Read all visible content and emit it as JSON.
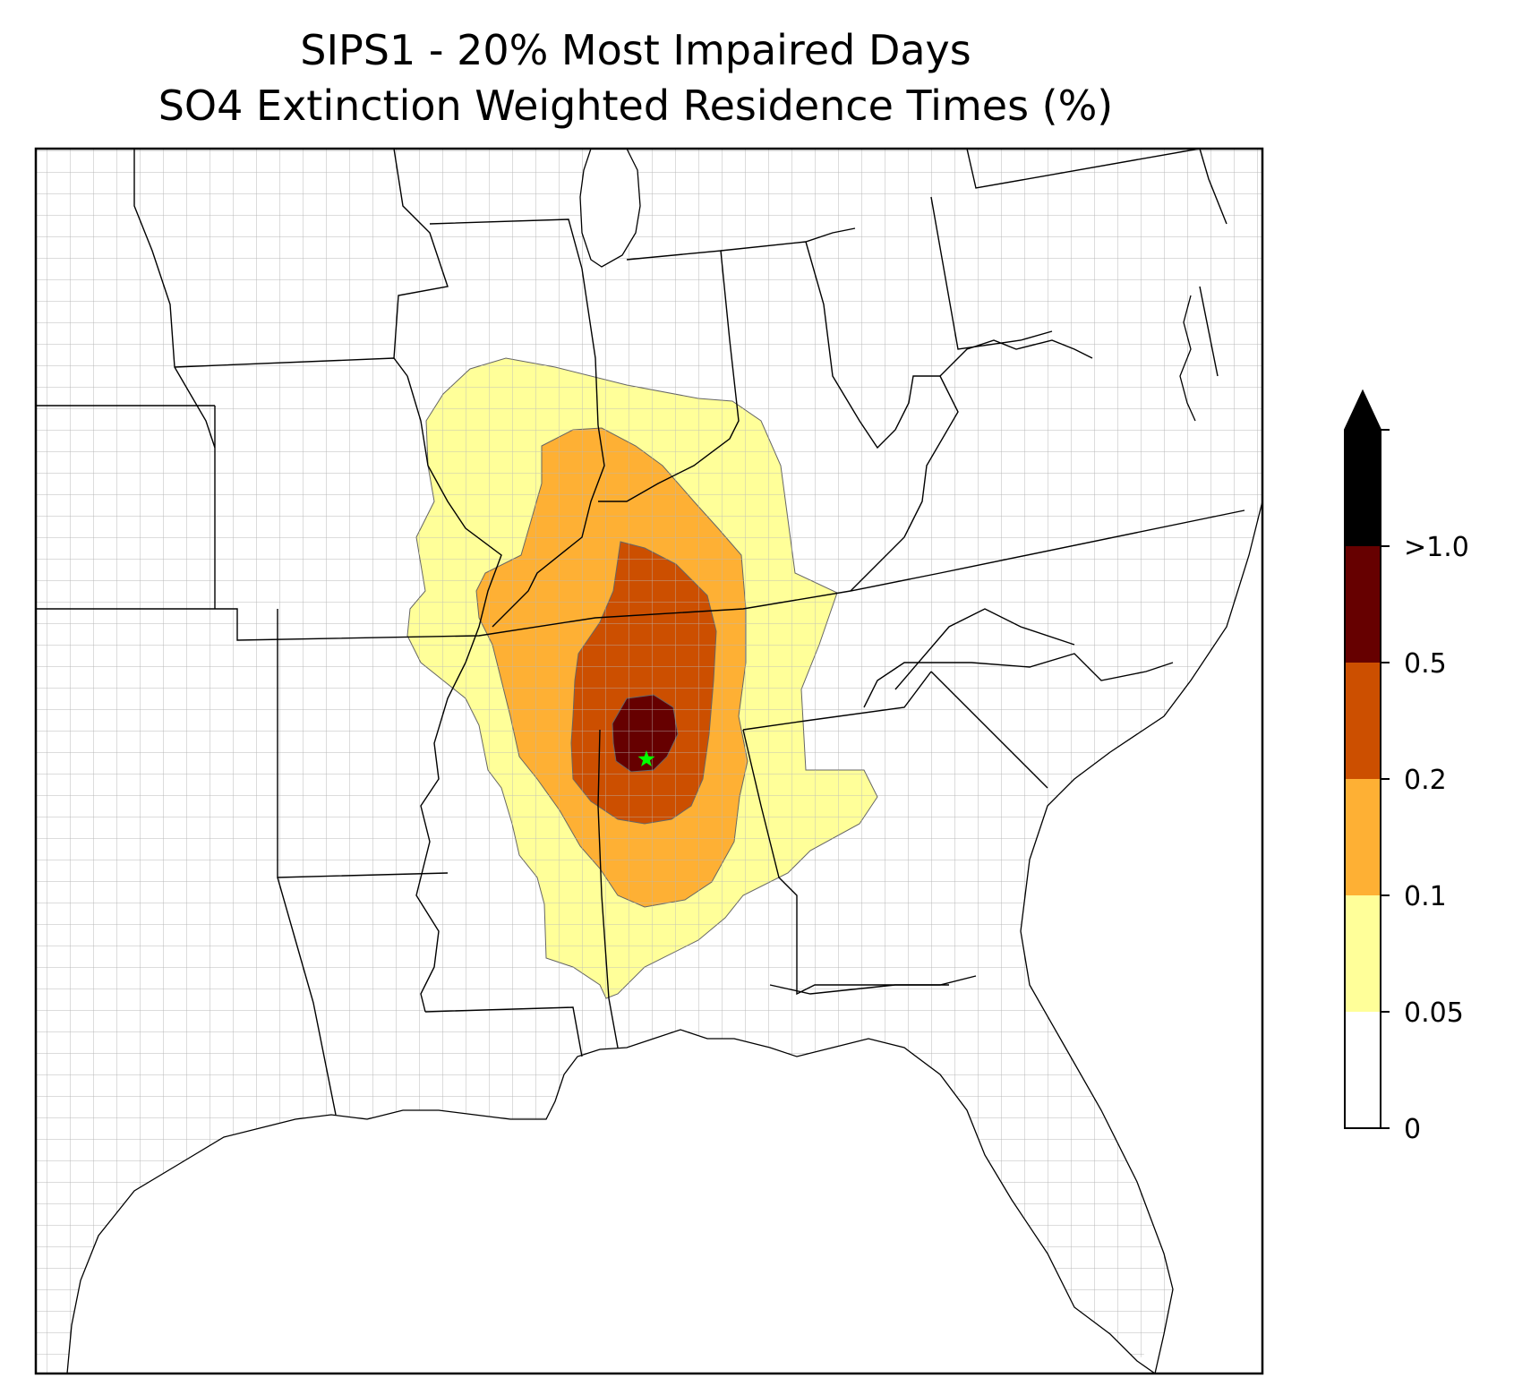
{
  "title": {
    "line1": "SIPS1 - 20% Most Impaired Days",
    "line2": "SO4 Extinction Weighted Residence Times (%)"
  },
  "colorbar": {
    "ticks": [
      "0",
      "0.05",
      "0.1",
      "0.2",
      "0.5",
      ">1.0"
    ],
    "bins": [
      {
        "range": "0 - 0.05",
        "color": "#ffffff"
      },
      {
        "range": "0.05 - 0.1",
        "color": "#ffff99"
      },
      {
        "range": "0.1 - 0.2",
        "color": "#feb034"
      },
      {
        "range": "0.2 - 0.5",
        "color": "#cc4f00"
      },
      {
        "range": "0.5 - 1.0",
        "color": "#660000"
      },
      {
        "range": ">1.0",
        "color": "#000000"
      }
    ],
    "extend": "max"
  },
  "map": {
    "region": "Southeastern United States",
    "state_border_color": "#000000",
    "county_border_color": "#a0a0a0",
    "site_marker": {
      "name": "SIPS1",
      "symbol": "star",
      "color": "#00ff00"
    }
  }
}
